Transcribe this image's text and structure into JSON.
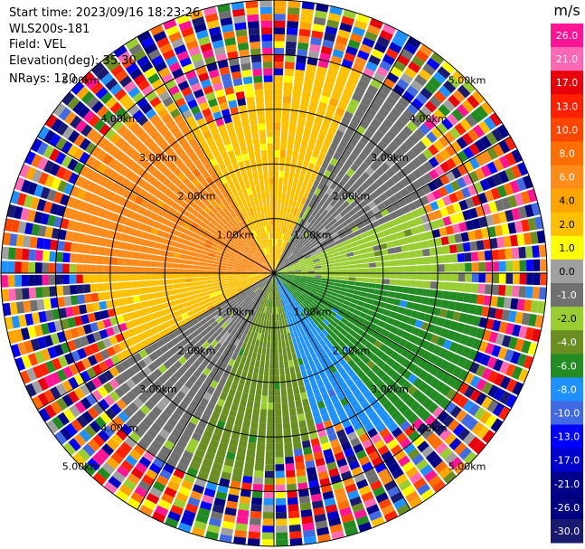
{
  "header": {
    "start_time": "Start time: 2023/09/16 18:23:26",
    "instrument": "WLS200s-181",
    "field": "Field: VEL",
    "elevation": "Elevation(deg): 35.30",
    "nrays": "NRays: 120"
  },
  "chart_data": {
    "type": "heatmap",
    "subtype": "polar-ppi",
    "field": "VEL",
    "units": "m/s",
    "nrays": 120,
    "range_rings_km": [
      1.0,
      2.0,
      3.0,
      4.0,
      5.0
    ],
    "range_ring_labels": [
      "1.00km",
      "2.00km",
      "3.00km",
      "4.00km",
      "5.00km"
    ],
    "max_range_km": 5.0,
    "grid": true,
    "colorbar": {
      "title": "m/s",
      "position": "right",
      "ticks": [
        "26.0",
        "21.0",
        "17.0",
        "13.0",
        "10.0",
        "8.0",
        "6.0",
        "4.0",
        "2.0",
        "1.0",
        "0.0",
        "-1.0",
        "-2.0",
        "-4.0",
        "-6.0",
        "-8.0",
        "-10.0",
        "-13.0",
        "-17.0",
        "-21.0",
        "-26.0",
        "-30.0"
      ],
      "colors": [
        "#ff1493",
        "#ff69b4",
        "#e8000a",
        "#ff2000",
        "#ff4500",
        "#ff6f00",
        "#ff8c1a",
        "#ffa500",
        "#ffc000",
        "#ffff00",
        "#a0a0a0",
        "#707070",
        "#9acd32",
        "#6b8e23",
        "#228b22",
        "#1e90ff",
        "#4169e1",
        "#0000ff",
        "#0000cd",
        "#00008b",
        "#000080",
        "#191970"
      ]
    },
    "near_field_sectors": [
      {
        "from_deg": -90,
        "to_deg": -30,
        "value": 6.0
      },
      {
        "from_deg": -30,
        "to_deg": 25,
        "value": 2.0
      },
      {
        "from_deg": 25,
        "to_deg": 65,
        "value": -1.0
      },
      {
        "from_deg": 65,
        "to_deg": 95,
        "value": -2.0
      },
      {
        "from_deg": 95,
        "to_deg": 140,
        "value": -6.0
      },
      {
        "from_deg": 140,
        "to_deg": 165,
        "value": -8.0
      },
      {
        "from_deg": 165,
        "to_deg": 205,
        "value": -4.0
      },
      {
        "from_deg": 205,
        "to_deg": 240,
        "value": -1.0
      },
      {
        "from_deg": 240,
        "to_deg": 290,
        "value": 2.0
      },
      {
        "from_deg": 290,
        "to_deg": 330,
        "value": 4.0
      }
    ]
  }
}
